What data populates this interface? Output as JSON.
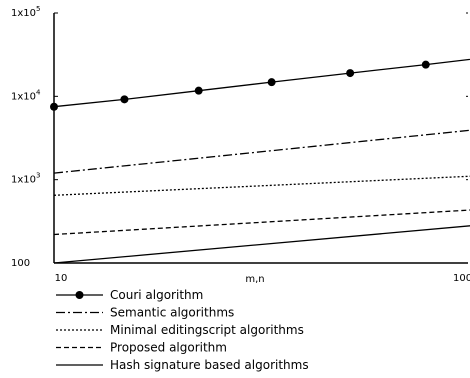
{
  "chart_data": {
    "type": "line",
    "title": "",
    "xlabel": "m,n",
    "ylabel": "",
    "xscale": "log",
    "yscale": "log",
    "xlim": [
      10,
      1000
    ],
    "ylim": [
      100,
      100000
    ],
    "x_tick_labels": [
      "10",
      "100"
    ],
    "y_ticks": [
      {
        "value": 100,
        "base": "100",
        "exp": ""
      },
      {
        "value": 1000,
        "base": "1x10",
        "exp": "3"
      },
      {
        "value": 10000,
        "base": "1x10",
        "exp": "4"
      },
      {
        "value": 100000,
        "base": "1x10",
        "exp": "5"
      }
    ],
    "grid": false,
    "legend_position": "bottom-left",
    "series": [
      {
        "name": "Couri algorithm",
        "style": "solid-markers",
        "x": [
          10,
          15,
          23,
          35,
          55,
          85,
          130,
          700
        ],
        "y": [
          7500,
          9200,
          11700,
          14800,
          19000,
          24000,
          30600,
          38000
        ],
        "marker_x": [
          10,
          15,
          23,
          35,
          55,
          85,
          130
        ]
      },
      {
        "name": "Semantic algorithms",
        "style": "dashdot",
        "x": [
          10,
          700
        ],
        "y": [
          1200,
          9800
        ]
      },
      {
        "name": "Minimal editingscript algorithms",
        "style": "dotted",
        "x": [
          10,
          700
        ],
        "y": [
          650,
          1650
        ]
      },
      {
        "name": "Proposed algorithm",
        "style": "dashed",
        "x": [
          10,
          700
        ],
        "y": [
          220,
          730
        ]
      },
      {
        "name": "Hash signature based algorithms",
        "style": "solid",
        "x": [
          10,
          700
        ],
        "y": [
          100,
          620
        ]
      }
    ],
    "colors": {
      "line": "#000000",
      "background": "#ffffff"
    }
  }
}
